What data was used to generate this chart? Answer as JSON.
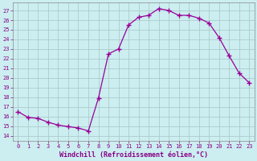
{
  "x": [
    0,
    1,
    2,
    3,
    4,
    5,
    6,
    7,
    8,
    9,
    10,
    11,
    12,
    13,
    14,
    15,
    16,
    17,
    18,
    19,
    20,
    21,
    22,
    23
  ],
  "y": [
    16.5,
    15.9,
    15.8,
    15.4,
    15.1,
    14.95,
    14.8,
    14.5,
    17.9,
    22.5,
    23.0,
    25.5,
    26.3,
    26.5,
    27.2,
    27.0,
    26.5,
    26.5,
    26.2,
    25.7,
    24.2,
    22.3,
    20.5,
    19.5
  ],
  "line_color": "#990099",
  "marker": "+",
  "bg_color": "#cceef0",
  "grid_color": "#aacccc",
  "xlabel": "Windchill (Refroidissement éolien,°C)",
  "ylabel_ticks": [
    14,
    15,
    16,
    17,
    18,
    19,
    20,
    21,
    22,
    23,
    24,
    25,
    26,
    27
  ],
  "xlim": [
    -0.5,
    23.5
  ],
  "ylim": [
    13.5,
    27.8
  ],
  "tick_color": "#880088",
  "xlabel_color": "#880088"
}
